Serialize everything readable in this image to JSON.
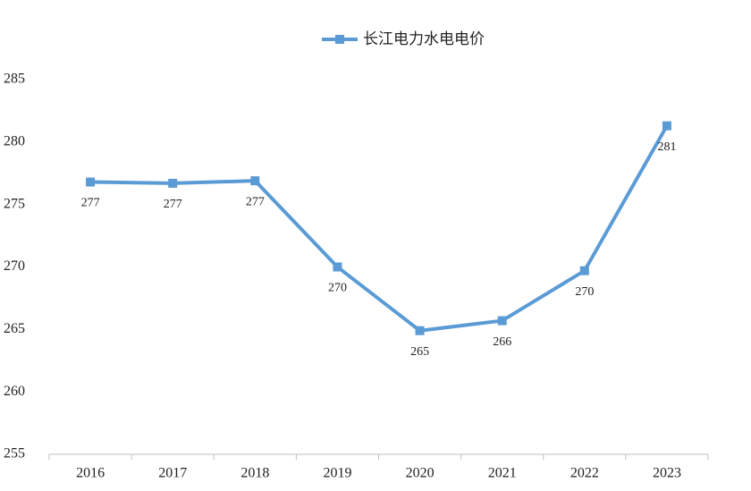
{
  "chart_data": {
    "type": "line",
    "categories": [
      "2016",
      "2017",
      "2018",
      "2019",
      "2020",
      "2021",
      "2022",
      "2023"
    ],
    "series": [
      {
        "name": "长江电力水电电价",
        "color": "#5b9bd5",
        "values": [
          276.8,
          276.7,
          276.9,
          270.0,
          264.9,
          265.7,
          269.7,
          281.3
        ],
        "value_labels": [
          "277",
          "277",
          "277",
          "270",
          "265",
          "266",
          "270",
          "281"
        ]
      }
    ],
    "ylim": [
      255,
      285
    ],
    "yticks": [
      255,
      260,
      265,
      270,
      275,
      280,
      285
    ],
    "grid": false,
    "legend": "top"
  }
}
